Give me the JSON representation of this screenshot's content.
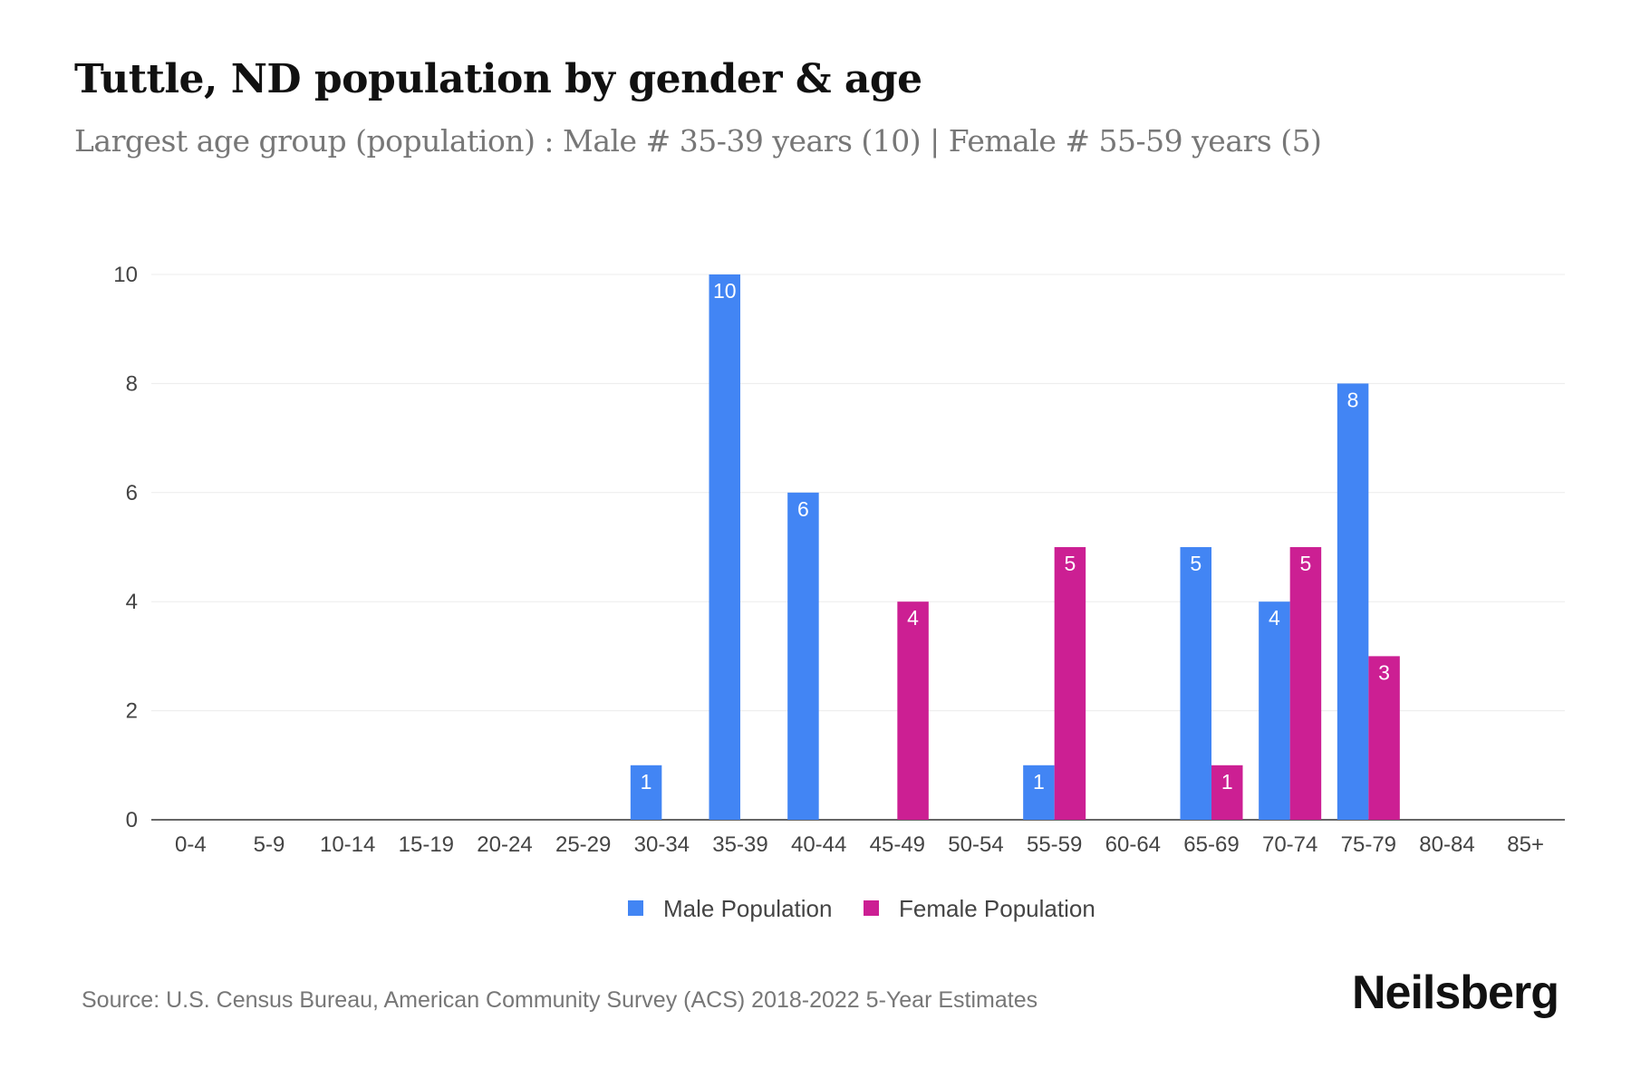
{
  "title": "Tuttle, ND population by gender & age",
  "subtitle": "Largest age group (population) : Male # 35-39 years (10) | Female # 55-59 years (5)",
  "source": "Source: U.S. Census Bureau, American Community Survey (ACS) 2018-2022 5-Year Estimates",
  "logo": "Neilsberg",
  "chart_data": {
    "type": "bar",
    "categories": [
      "0-4",
      "5-9",
      "10-14",
      "15-19",
      "20-24",
      "25-29",
      "30-34",
      "35-39",
      "40-44",
      "45-49",
      "50-54",
      "55-59",
      "60-64",
      "65-69",
      "70-74",
      "75-79",
      "80-84",
      "85+"
    ],
    "series": [
      {
        "name": "Male Population",
        "color": "#4285f4",
        "values": [
          0,
          0,
          0,
          0,
          0,
          0,
          1,
          10,
          6,
          0,
          0,
          1,
          0,
          5,
          4,
          8,
          0,
          0
        ]
      },
      {
        "name": "Female Population",
        "color": "#cc1f93",
        "values": [
          0,
          0,
          0,
          0,
          0,
          0,
          0,
          0,
          0,
          4,
          0,
          5,
          0,
          1,
          5,
          3,
          0,
          0
        ]
      }
    ],
    "ylim": [
      0,
      10
    ],
    "yticks": [
      0,
      2,
      4,
      6,
      8,
      10
    ],
    "grid": true,
    "legend": "bottom"
  }
}
